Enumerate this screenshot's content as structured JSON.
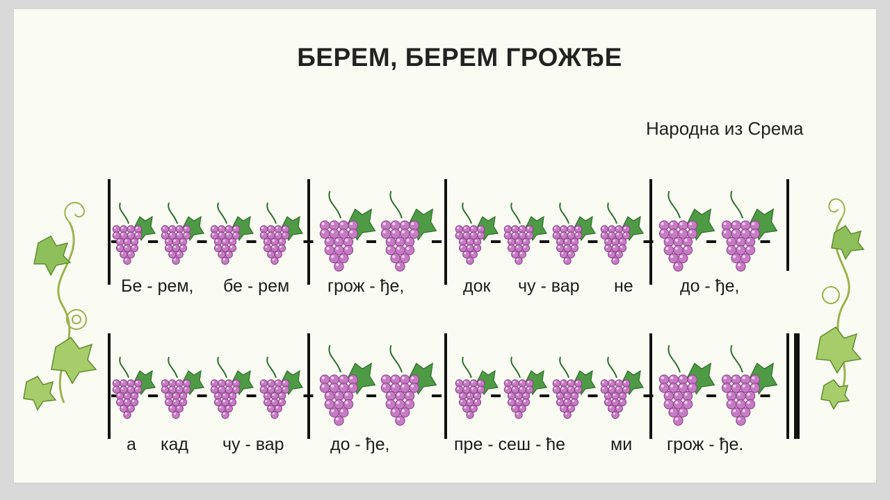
{
  "title": "БЕРЕМ, БЕРЕМ ГРОЖЂЕ",
  "subtitle": "Народна из Срема",
  "colors": {
    "grape": "#c77bc4",
    "grape_dark": "#8a3f88",
    "leaf": "#4f9a45",
    "leaf_dark": "#2b6e2b",
    "vine": "#9bb24e"
  },
  "rows": [
    {
      "measures": [
        [
          "short",
          "short",
          "short",
          "short"
        ],
        [
          "long",
          "long"
        ],
        [
          "short",
          "short",
          "short",
          "short"
        ],
        [
          "long",
          "long"
        ]
      ],
      "end": "single",
      "lyrics": [
        "Бе - рем,",
        "бе - рем",
        "грож - ђе,",
        "док",
        "чу - вар",
        "не",
        "до - ђе,"
      ]
    },
    {
      "measures": [
        [
          "short",
          "short",
          "short",
          "short"
        ],
        [
          "long",
          "long"
        ],
        [
          "short",
          "short",
          "short",
          "short"
        ],
        [
          "long",
          "long"
        ]
      ],
      "end": "final",
      "lyrics": [
        "а",
        "кад",
        "чу - вар",
        "до - ђе,",
        "пре - сеш - ће",
        "ми",
        "грож - ђе."
      ]
    }
  ]
}
